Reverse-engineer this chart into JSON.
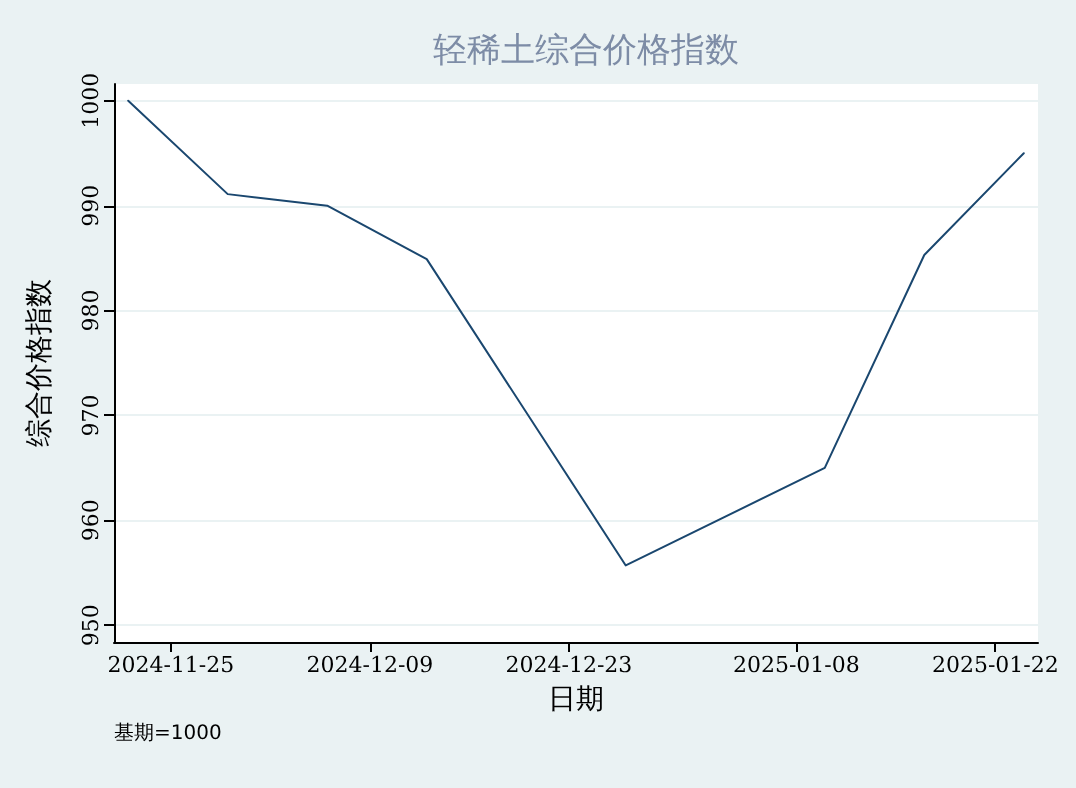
{
  "chart_data": {
    "type": "line",
    "title": "轻稀土综合价格指数",
    "xlabel": "日期",
    "ylabel": "综合价格指数",
    "annotations": [
      "基期=1000"
    ],
    "x": [
      "2024-11-22",
      "2024-11-29",
      "2024-12-06",
      "2024-12-13",
      "2024-12-27",
      "2025-01-10",
      "2025-01-17",
      "2025-01-24"
    ],
    "series": [
      {
        "color": "#1a476f",
        "values": [
          1000,
          991.1,
          990,
          984.9,
          955.7,
          965,
          985.3,
          995
        ]
      }
    ],
    "xlim": [
      "2024-11-21",
      "2025-01-25"
    ],
    "xticks": [
      "2024-11-25",
      "2024-12-09",
      "2024-12-23",
      "2025-01-08",
      "2025-01-22"
    ],
    "ylim": [
      948.4,
      1001.6
    ],
    "yticks": [
      950,
      960,
      970,
      980,
      990,
      1000
    ],
    "grid": "y",
    "marker": "none",
    "line_style": "solid"
  }
}
